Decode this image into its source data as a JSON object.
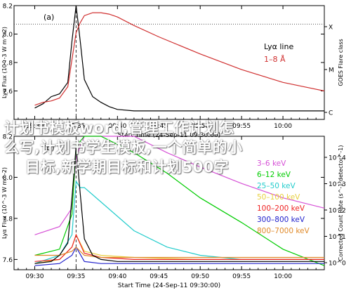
{
  "colors": {
    "top_flux": "#000000",
    "goes_flux": "#d03030",
    "zero_line": "#555555",
    "overlay_text": "#ffffff"
  },
  "overlay": {
    "lines": [
      "计划书模板word,管理工作计划怎",
      "么写,计划书学生模板,一个简单的小",
      "目标,新学期目标和计划500字"
    ]
  },
  "shared": {
    "xlabel": "Start Time (24-Sep-11 09:30:00)",
    "x_ticks": [
      "09:30",
      "09:35",
      "09:40",
      "09:45",
      "09:50",
      "09:55",
      "10:00"
    ]
  },
  "chart_data": [
    {
      "type": "line",
      "panel_label": "(a)",
      "xlabel": "Start Time (24-Sep-11 09:30:00)",
      "ylabel": "Lyα Flux (10^-3 W m^-2)",
      "ylim": [
        7.4,
        8.2
      ],
      "y_ticks": [
        "7.6",
        "7.8",
        "8.0",
        "8.2"
      ],
      "right_axis": {
        "label": "GOES Flare class",
        "ticks": [
          "X",
          "M",
          "C"
        ]
      },
      "x": [
        "09:30",
        "09:31",
        "09:32",
        "09:33",
        "09:34",
        "09:34:30",
        "09:35",
        "09:35:30",
        "09:36",
        "09:37",
        "09:38",
        "09:39",
        "09:40",
        "09:42",
        "09:45",
        "09:50",
        "09:55",
        "10:00",
        "10:05"
      ],
      "series": [
        {
          "name": "Lyα line",
          "color": "#000000",
          "values": [
            7.48,
            7.51,
            7.56,
            7.58,
            7.66,
            7.95,
            8.22,
            7.95,
            7.68,
            7.56,
            7.52,
            7.49,
            7.47,
            7.46,
            7.46,
            7.46,
            7.46,
            7.46,
            7.46
          ]
        },
        {
          "name": "1–8 Å",
          "color": "#d03030",
          "values": [
            7.5,
            7.52,
            7.53,
            7.55,
            7.63,
            7.82,
            8.01,
            8.08,
            8.13,
            8.15,
            8.15,
            8.14,
            8.12,
            8.06,
            7.98,
            7.86,
            7.75,
            7.66,
            7.6
          ]
        }
      ],
      "reference_line": 8.07,
      "legend": "top-right"
    },
    {
      "type": "line",
      "panel_label": "(b)",
      "xlabel": "Start Time (24-Sep-11 09:30:00)",
      "ylabel": "Lyα Flux (10^-3 W m^-2)",
      "ylim": [
        7.55,
        8.2
      ],
      "y_ticks": [
        "7.6",
        "7.8",
        "8.0",
        "8.2"
      ],
      "right_axis": {
        "label": "Corrected Count Rate (s^-1 detector^-1)",
        "ticks": [
          "10^4",
          "10^3",
          "10^2",
          "10^1",
          "10^0"
        ]
      },
      "legend": "bottom-right",
      "series": [
        {
          "name": "3–6 keV",
          "color": "#d651d6",
          "x": [
            0,
            3,
            4.5,
            5,
            6,
            8,
            12,
            16,
            20,
            25,
            30,
            35
          ],
          "values": [
            7.72,
            7.76,
            7.85,
            8.1,
            8.24,
            8.23,
            8.2,
            8.12,
            8.05,
            7.97,
            7.9,
            7.85
          ]
        },
        {
          "name": "6–12 keV",
          "color": "#00cc00",
          "x": [
            0,
            3,
            4.5,
            5,
            6,
            8,
            12,
            16,
            20,
            25,
            30,
            35
          ],
          "values": [
            7.62,
            7.65,
            7.82,
            8.15,
            8.26,
            8.23,
            8.12,
            8.02,
            7.9,
            7.78,
            7.65,
            7.57
          ]
        },
        {
          "name": "25–50 keV",
          "color": "#22cccc",
          "x": [
            0,
            3,
            4.5,
            5,
            5.5,
            6,
            8,
            12,
            16,
            20,
            25,
            30,
            35
          ],
          "values": [
            7.58,
            7.62,
            7.72,
            7.98,
            7.95,
            7.95,
            7.88,
            7.74,
            7.66,
            7.62,
            7.6,
            7.6,
            7.6
          ]
        },
        {
          "name": "50–100 keV",
          "color": "#e8d040",
          "x": [
            0,
            3,
            4.5,
            5,
            6,
            8,
            12,
            20,
            30,
            35
          ],
          "values": [
            7.58,
            7.6,
            7.66,
            7.72,
            7.64,
            7.62,
            7.61,
            7.6,
            7.6,
            7.6
          ]
        },
        {
          "name": "100–200 keV",
          "color": "#ee2222",
          "x": [
            0,
            3,
            4.5,
            5,
            6,
            8,
            12,
            20,
            30,
            35
          ],
          "values": [
            7.59,
            7.6,
            7.66,
            7.72,
            7.63,
            7.61,
            7.6,
            7.6,
            7.6,
            7.6
          ]
        },
        {
          "name": "300–800 keV",
          "color": "#2222cc",
          "x": [
            0,
            3,
            4.5,
            5,
            6,
            8,
            12,
            20,
            30,
            35
          ],
          "values": [
            7.57,
            7.58,
            7.62,
            7.66,
            7.59,
            7.58,
            7.58,
            7.58,
            7.58,
            7.58
          ]
        },
        {
          "name": "800–7000 keV",
          "color": "#e08a2a",
          "x": [
            0,
            3,
            4.5,
            5,
            6,
            8,
            12,
            20,
            30,
            35
          ],
          "values": [
            7.62,
            7.62,
            7.64,
            7.66,
            7.62,
            7.61,
            7.61,
            7.61,
            7.61,
            7.61
          ]
        },
        {
          "name": "",
          "color": "#000000",
          "x": [
            0,
            2,
            3,
            4,
            4.5,
            5,
            5.5,
            6,
            7,
            8,
            10,
            35
          ],
          "values": [
            7.58,
            7.59,
            7.62,
            7.68,
            7.9,
            8.15,
            7.92,
            7.7,
            7.62,
            7.6,
            7.59,
            7.59
          ]
        }
      ]
    }
  ]
}
